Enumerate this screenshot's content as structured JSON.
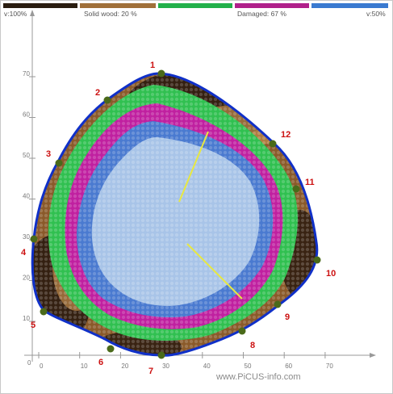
{
  "legend": {
    "items": [
      {
        "label": "v:100%",
        "color": "#3a2a1a"
      },
      {
        "label": "Solid wood: 20 %",
        "color": "#a0703a"
      },
      {
        "label": "",
        "color": "#22b04a"
      },
      {
        "label": "Damaged: 67 %",
        "color": "#b0208a"
      },
      {
        "label": "v:50%",
        "color": "#3a7ad0"
      }
    ]
  },
  "axes": {
    "x_ticks": [
      "0",
      "10",
      "20",
      "30",
      "40",
      "50",
      "60",
      "70"
    ],
    "y_ticks": [
      "10",
      "20",
      "30",
      "40",
      "50",
      "60",
      "70"
    ],
    "origin_label": "0"
  },
  "sensors": [
    "1",
    "2",
    "3",
    "4",
    "5",
    "6",
    "7",
    "8",
    "9",
    "10",
    "11",
    "12"
  ],
  "colors": {
    "outline": "#1030c8",
    "sensor_dot": "#4a6a1a",
    "label": "#cc1111",
    "path_line": "#e8e840",
    "light_blue": "#a8c4e8",
    "mid_blue": "#4a7ad0",
    "green": "#30c050",
    "magenta": "#c020a0",
    "brown": "#a06a30",
    "dark": "#2a1a0e"
  },
  "watermark": "www.PiCUS-info.com"
}
